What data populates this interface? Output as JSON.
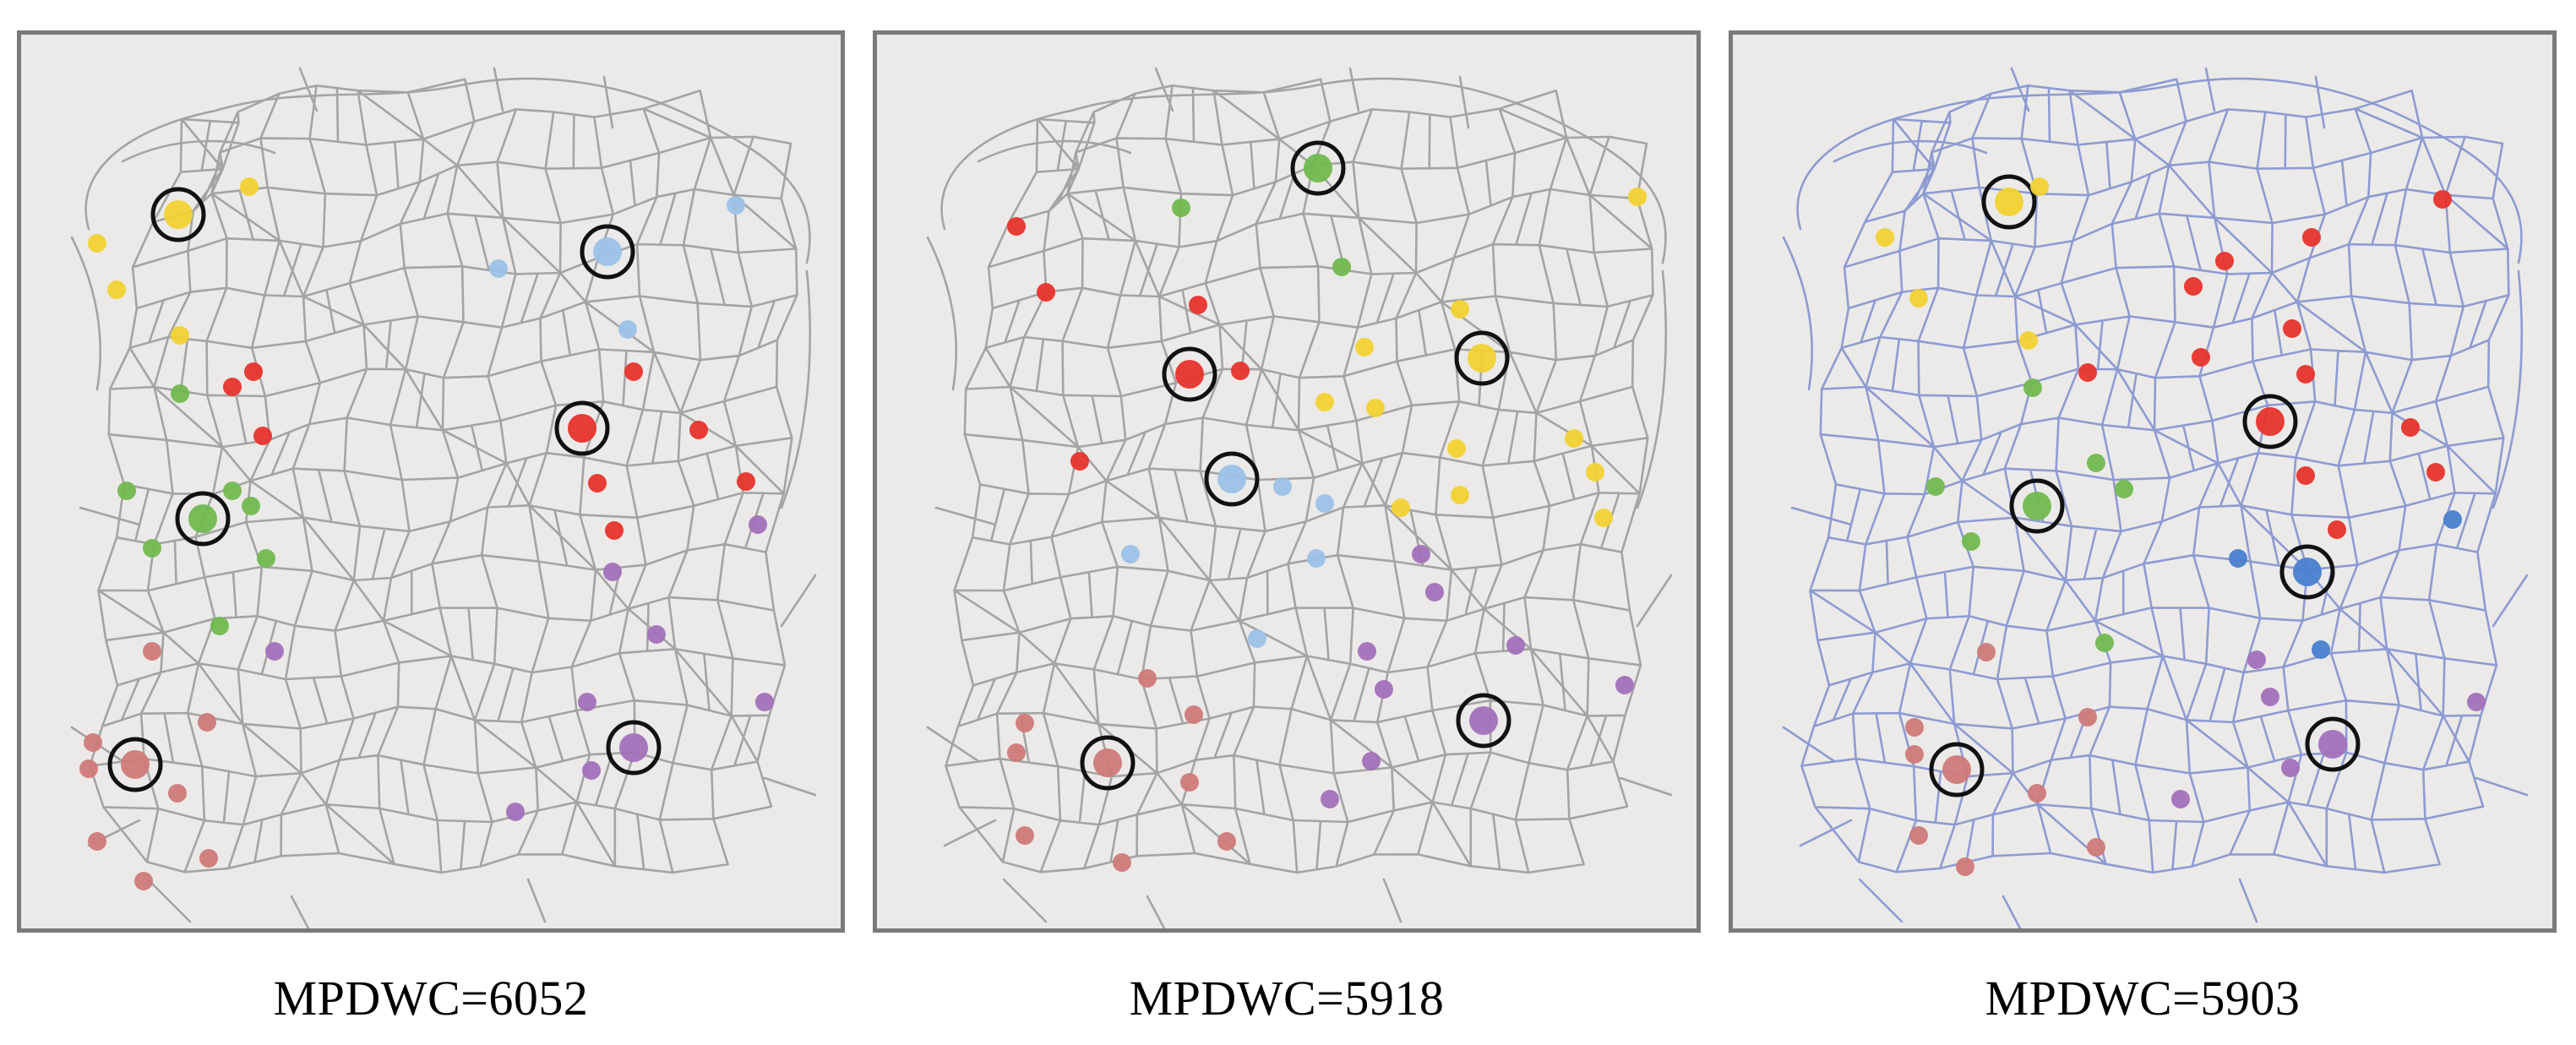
{
  "panels": [
    {
      "caption": "MPDWC=6052",
      "network_style": "gray"
    },
    {
      "caption": "MPDWC=5918",
      "network_style": "gray"
    },
    {
      "caption": "MPDWC=5903",
      "network_style": "blue"
    }
  ],
  "colors": {
    "frame": "#7a7a7a",
    "panel_background": "#ebeae8",
    "road_gray": "#a4a4a4",
    "road_blue": "#8e9bd2",
    "cluster_yellow": "#f2d232",
    "cluster_lightblue": "#9cc2e8",
    "cluster_blue": "#4a7fcf",
    "cluster_red": "#e8332c",
    "cluster_green": "#72b950",
    "cluster_purple": "#a371bb",
    "cluster_pink": "#cf7a78",
    "center_ring": "#111111"
  }
}
